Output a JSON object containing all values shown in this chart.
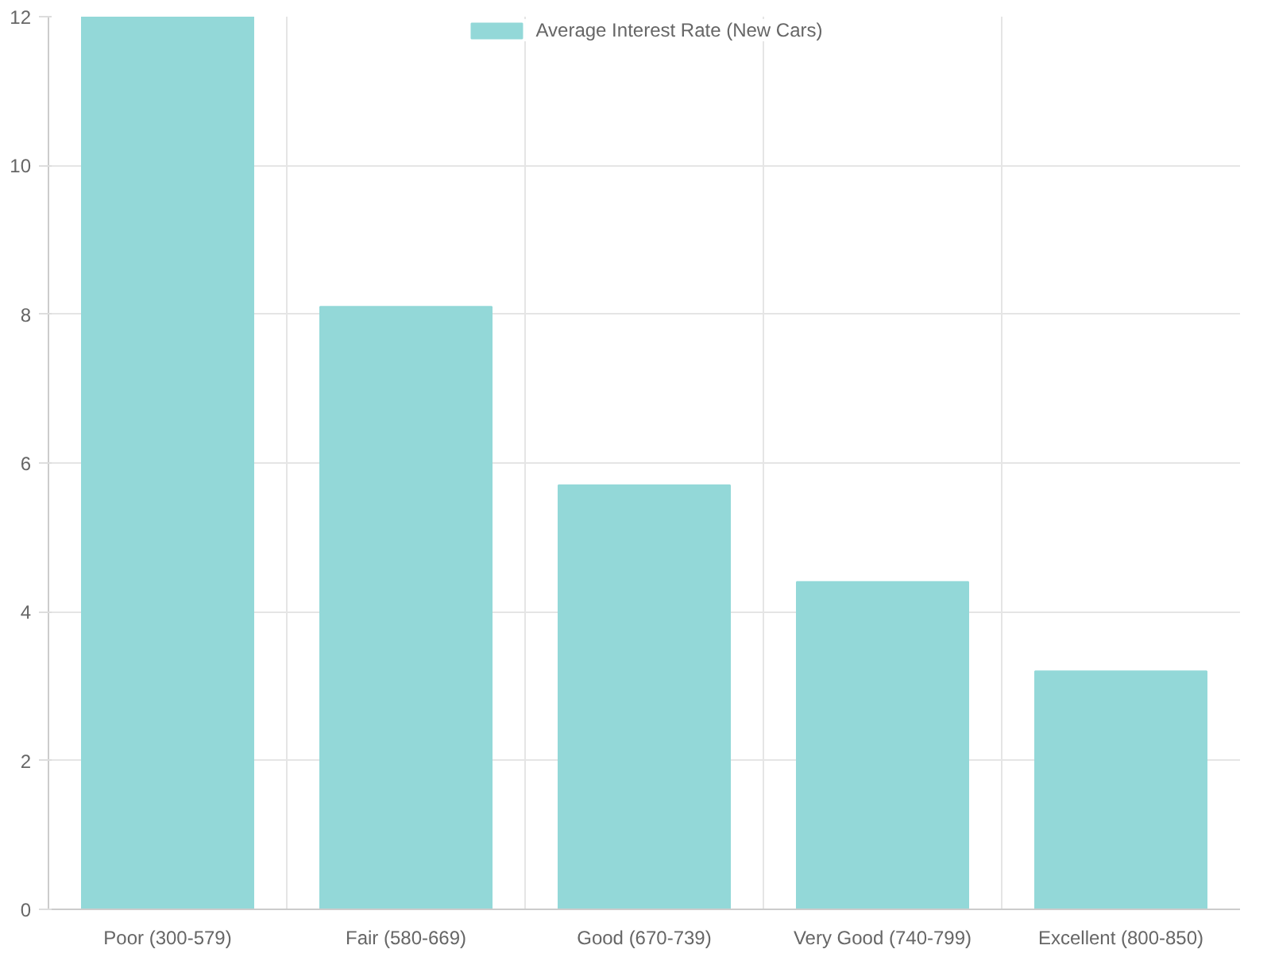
{
  "chart_data": {
    "type": "bar",
    "categories": [
      "Poor (300-579)",
      "Fair (580-669)",
      "Good (670-739)",
      "Very Good (740-799)",
      "Excellent (800-850)"
    ],
    "series": [
      {
        "name": "Average Interest Rate (New Cars)",
        "color": "#93d8d8",
        "values": [
          12,
          8.1,
          5.7,
          4.4,
          3.2
        ]
      }
    ],
    "ylim": [
      0,
      12
    ],
    "yticks": [
      0,
      2,
      4,
      6,
      8,
      10,
      12
    ],
    "grid": true,
    "legend": "top"
  }
}
